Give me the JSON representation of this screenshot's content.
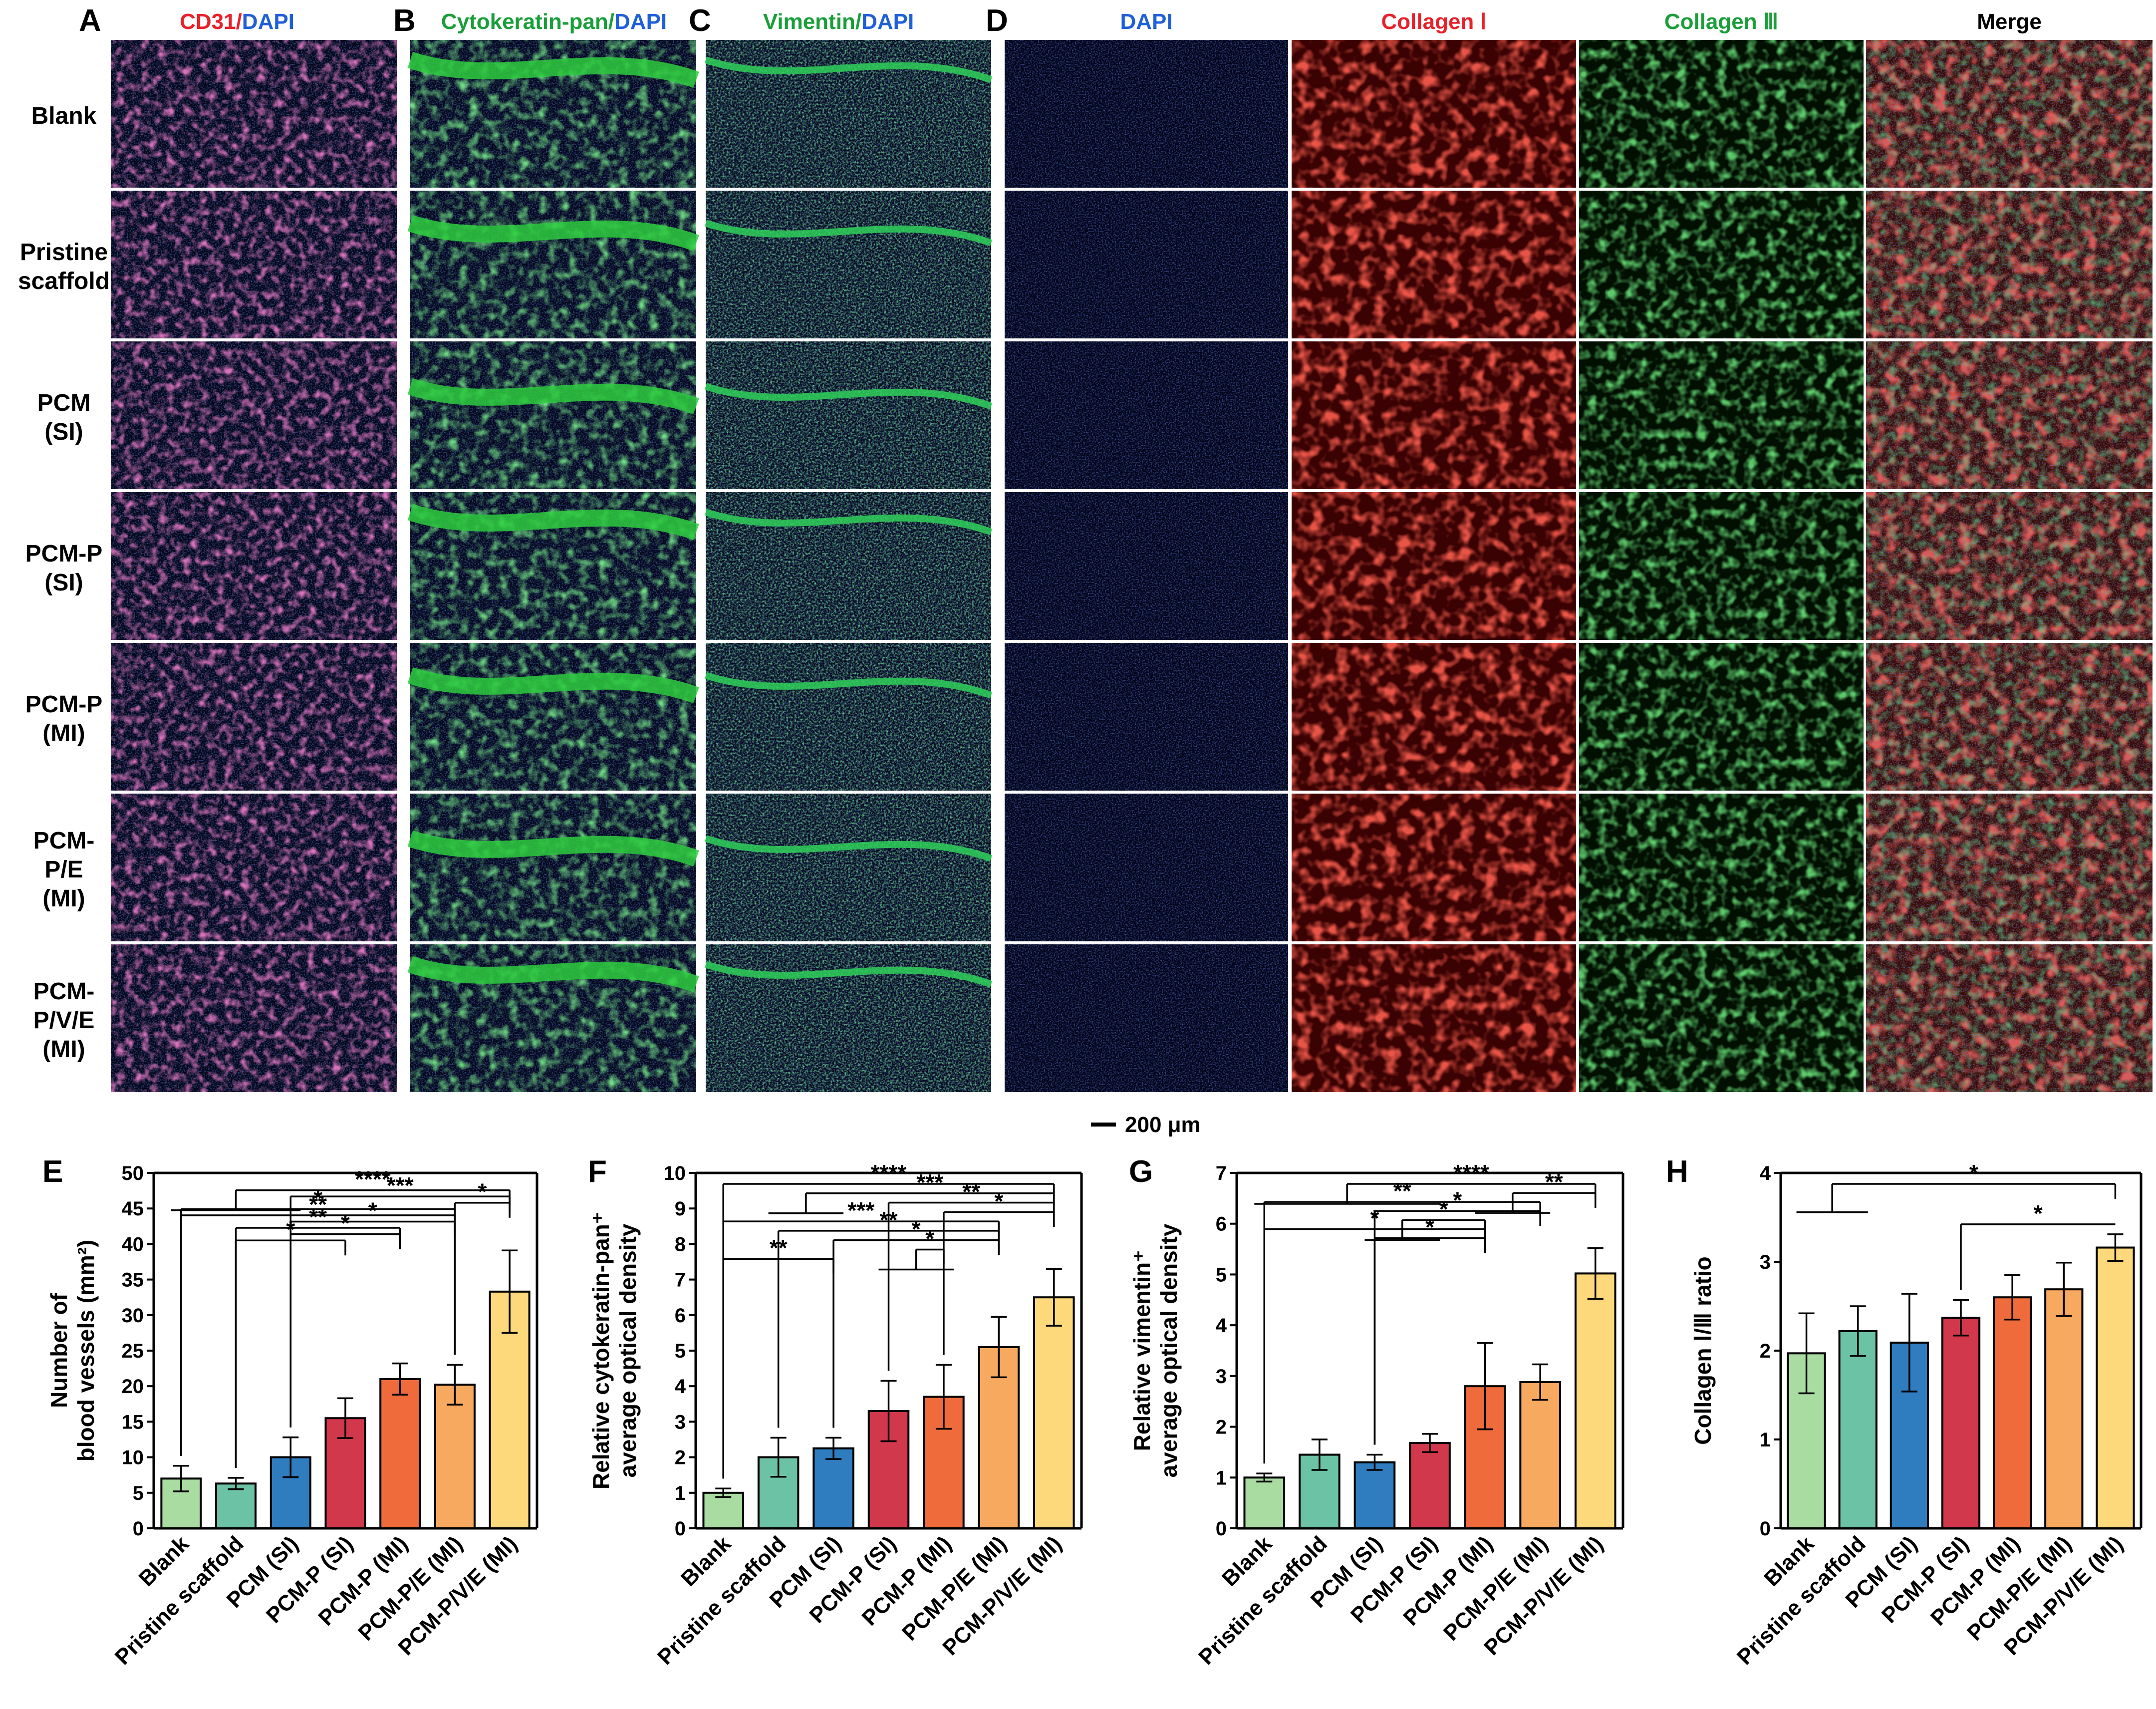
{
  "image_panels": {
    "letters": [
      "A",
      "B",
      "C",
      "D"
    ],
    "headers": {
      "A": [
        {
          "text": "CD31",
          "color": "#e8202a"
        },
        {
          "text": "/",
          "color": "#e8202a"
        },
        {
          "text": "DAPI",
          "color": "#1f5fd8"
        }
      ],
      "B": [
        {
          "text": "Cytokeratin-pan",
          "color": "#1a9e3a"
        },
        {
          "text": "/",
          "color": "#1a9e3a"
        },
        {
          "text": "DAPI",
          "color": "#1f5fd8"
        }
      ],
      "C": [
        {
          "text": "Vimentin",
          "color": "#1a9e3a"
        },
        {
          "text": "/",
          "color": "#1a9e3a"
        },
        {
          "text": "DAPI",
          "color": "#1f5fd8"
        }
      ],
      "D": [
        {
          "text": "DAPI",
          "color": "#1f5fd8"
        },
        {
          "text": "Collagen Ⅰ",
          "color": "#e8202a"
        },
        {
          "text": "Collagen Ⅲ",
          "color": "#1a9e3a"
        },
        {
          "text": "Merge",
          "color": "#000000"
        }
      ]
    },
    "row_labels": [
      [
        "Blank"
      ],
      [
        "Pristine",
        "scaffold"
      ],
      [
        "PCM",
        "(SI)"
      ],
      [
        "PCM-P",
        "(SI)"
      ],
      [
        "PCM-P",
        "(MI)"
      ],
      [
        "PCM-",
        "P/E",
        "(MI)"
      ],
      [
        "PCM-",
        "P/V/E",
        "(MI)"
      ]
    ],
    "scale_bar": "200 μm",
    "stain_colors": {
      "cd31": "#c0308a",
      "cytokeratin": "#2ecc40",
      "vimentin": "#2fd05a",
      "dapi": "#1f3fd0",
      "collagen1": "#e21a12",
      "collagen3": "#1fa52a",
      "merge": "#b34a1a"
    }
  },
  "chart_data": [
    {
      "panel": "E",
      "type": "bar",
      "categories": [
        "Blank",
        "Pristine scaffold",
        "PCM (SI)",
        "PCM-P (SI)",
        "PCM-P (MI)",
        "PCM-P/E (MI)",
        "PCM-P/V/E (MI)"
      ],
      "values": [
        7.0,
        6.3,
        10.0,
        15.5,
        21.0,
        20.2,
        33.3
      ],
      "errors": [
        1.8,
        0.8,
        2.8,
        2.8,
        2.2,
        2.8,
        5.8
      ],
      "ylim": [
        0,
        50
      ],
      "yticks": [
        0,
        5,
        10,
        15,
        20,
        25,
        30,
        35,
        40,
        45,
        50
      ],
      "ylabel_lines": [
        "Number of",
        "blood vessels (mm²)"
      ],
      "xlabel": "",
      "title": ""
    },
    {
      "panel": "F",
      "type": "bar",
      "categories": [
        "Blank",
        "Pristine scaffold",
        "PCM (SI)",
        "PCM-P (SI)",
        "PCM-P (MI)",
        "PCM-P/E (MI)",
        "PCM-P/V/E (MI)"
      ],
      "values": [
        1.0,
        2.0,
        2.25,
        3.3,
        3.7,
        5.1,
        6.5
      ],
      "errors": [
        0.12,
        0.55,
        0.3,
        0.85,
        0.9,
        0.85,
        0.8
      ],
      "ylim": [
        0,
        10
      ],
      "yticks": [
        0,
        1,
        2,
        3,
        4,
        5,
        6,
        7,
        8,
        9,
        10
      ],
      "ylabel_lines": [
        "Relative cytokeratin-pan⁺",
        "average optical density"
      ],
      "xlabel": "",
      "title": ""
    },
    {
      "panel": "G",
      "type": "bar",
      "categories": [
        "Blank",
        "Pristine scaffold",
        "PCM (SI)",
        "PCM-P (SI)",
        "PCM-P (MI)",
        "PCM-P/E (MI)",
        "PCM-P/V/E (MI)"
      ],
      "values": [
        1.0,
        1.45,
        1.3,
        1.68,
        2.8,
        2.88,
        5.02
      ],
      "errors": [
        0.08,
        0.3,
        0.15,
        0.18,
        0.85,
        0.35,
        0.5
      ],
      "ylim": [
        0,
        7
      ],
      "yticks": [
        0,
        1,
        2,
        3,
        4,
        5,
        6,
        7
      ],
      "ylabel_lines": [
        "Relative vimentin⁺",
        "average optical density"
      ],
      "xlabel": "",
      "title": ""
    },
    {
      "panel": "H",
      "type": "bar",
      "categories": [
        "Blank",
        "Pristine scaffold",
        "PCM (SI)",
        "PCM-P (SI)",
        "PCM-P (MI)",
        "PCM-P/E (MI)",
        "PCM-P/V/E (MI)"
      ],
      "values": [
        1.97,
        2.22,
        2.09,
        2.37,
        2.6,
        2.69,
        3.16
      ],
      "errors": [
        0.45,
        0.28,
        0.55,
        0.2,
        0.25,
        0.3,
        0.15
      ],
      "ylim": [
        0,
        4
      ],
      "yticks": [
        0,
        1,
        2,
        3,
        4
      ],
      "ylabel_lines": [
        "Collagen Ⅰ/Ⅲ ratio"
      ],
      "xlabel": "",
      "title": ""
    }
  ],
  "bar_colors": [
    "#a9dca0",
    "#6cc2a4",
    "#2f7cbf",
    "#d2384c",
    "#ef6b3b",
    "#f8a960",
    "#fdd97c"
  ],
  "significance": {
    "E": [
      {
        "from": 0,
        "to": 6,
        "level": 2,
        "label": "****",
        "group_from": [
          0,
          2
        ]
      },
      {
        "from": 2,
        "to": 6,
        "level": 3,
        "label": "***",
        "group_from": null
      },
      {
        "from": 5,
        "to": 6,
        "level": 4,
        "label": "*",
        "group_from": null
      },
      {
        "from": 0,
        "to": 5,
        "level": 5,
        "label": "*",
        "group_from": null
      },
      {
        "from": 0,
        "to": 5,
        "level": 6,
        "label": "**",
        "group_from": null
      },
      {
        "from": 2,
        "to": 5,
        "level": 7,
        "label": "*",
        "group_from": null
      },
      {
        "from": 1,
        "to": 4,
        "level": 8,
        "label": "**",
        "group_from": null
      },
      {
        "from": 2,
        "to": 4,
        "level": 9,
        "label": "*",
        "group_from": null
      },
      {
        "from": 1,
        "to": 3,
        "level": 10,
        "label": "*",
        "group_from": null
      }
    ],
    "F": [
      {
        "from": 0,
        "to": 6,
        "level": 1,
        "label": "****",
        "group_from": null
      },
      {
        "from": 1,
        "to": 6,
        "level": 2,
        "label": "***",
        "group_from": [
          1,
          2
        ]
      },
      {
        "from": 3,
        "to": 6,
        "level": 3,
        "label": "**",
        "group_from": null
      },
      {
        "from": 4,
        "to": 6,
        "level": 4,
        "label": "*",
        "group_from": null
      },
      {
        "from": 0,
        "to": 5,
        "level": 5,
        "label": "***",
        "group_from": null
      },
      {
        "from": 1,
        "to": 5,
        "level": 6,
        "label": "**",
        "group_from": null
      },
      {
        "from": 2,
        "to": 5,
        "level": 7,
        "label": "*",
        "group_from": null
      },
      {
        "from": 0,
        "to": 4,
        "level": 8,
        "label": "*",
        "group_from": [
          3,
          4
        ]
      },
      {
        "from": 0,
        "to": 2,
        "level": 9,
        "label": "**",
        "group_from": null
      }
    ],
    "G": [
      {
        "from": 0,
        "to": 6,
        "level": 1,
        "label": "****",
        "group_from": [
          0,
          3
        ]
      },
      {
        "from": 4,
        "to": 6,
        "level": 2,
        "label": "**",
        "group_from": [
          4,
          5
        ]
      },
      {
        "from": 0,
        "to": 5,
        "level": 3,
        "label": "**",
        "group_from": null
      },
      {
        "from": 2,
        "to": 5,
        "level": 4,
        "label": "*",
        "group_from": null
      },
      {
        "from": 2,
        "to": 4,
        "level": 5,
        "label": "*",
        "group_from": [
          2,
          3
        ]
      },
      {
        "from": 0,
        "to": 4,
        "level": 6,
        "label": "*",
        "group_from": null
      },
      {
        "from": 2,
        "to": 4,
        "level": 7,
        "label": "*",
        "group_from": null
      }
    ],
    "H": [
      {
        "from": 0,
        "to": 6,
        "level": 1,
        "label": "*",
        "group_from": [
          0,
          1
        ]
      },
      {
        "from": 3,
        "to": 6,
        "level": 2,
        "label": "*",
        "group_from": null
      }
    ]
  }
}
